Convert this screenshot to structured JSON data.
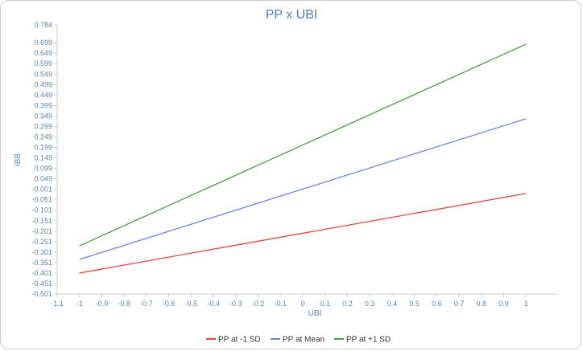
{
  "chart_data": {
    "type": "line",
    "title": "PP x UBI",
    "xlabel": "UBI",
    "ylabel": "IBB",
    "xlim": [
      -1.1,
      1.1
    ],
    "ylim": [
      -0.501,
      0.784
    ],
    "x_ticks": [
      "-1.1",
      "-1",
      "-0.9",
      "-0.8",
      "-0.7",
      "-0.6",
      "-0.5",
      "-0.4",
      "-0.3",
      "-0.2",
      "-0.1",
      "0",
      "0.1",
      "0.2",
      "0.3",
      "0.4",
      "0.5",
      "0.6",
      "0.7",
      "0.8",
      "0.9",
      "1"
    ],
    "y_ticks": [
      "0.784",
      "0.699",
      "0.649",
      "0.599",
      "0.549",
      "0.499",
      "0.449",
      "0.399",
      "0.349",
      "0.299",
      "0.249",
      "0.199",
      "0.149",
      "0.099",
      "0.049",
      "-0.001",
      "-0.051",
      "-0.101",
      "-0.151",
      "-0.201",
      "-0.251",
      "-0.301",
      "-0.351",
      "-0.401",
      "-0.451",
      "-0.501"
    ],
    "grid": false,
    "legend_position": "bottom-center",
    "series": [
      {
        "name": "PP at -1 SD",
        "color": "#e0443c",
        "x": [
          -1,
          1
        ],
        "y": [
          -0.401,
          -0.021
        ]
      },
      {
        "name": "PP at Mean",
        "color": "#6f7ff0",
        "x": [
          -1,
          1
        ],
        "y": [
          -0.336,
          0.336
        ]
      },
      {
        "name": "PP at +1 SD",
        "color": "#4e9a4a",
        "x": [
          -1,
          1
        ],
        "y": [
          -0.271,
          0.692
        ]
      }
    ]
  }
}
